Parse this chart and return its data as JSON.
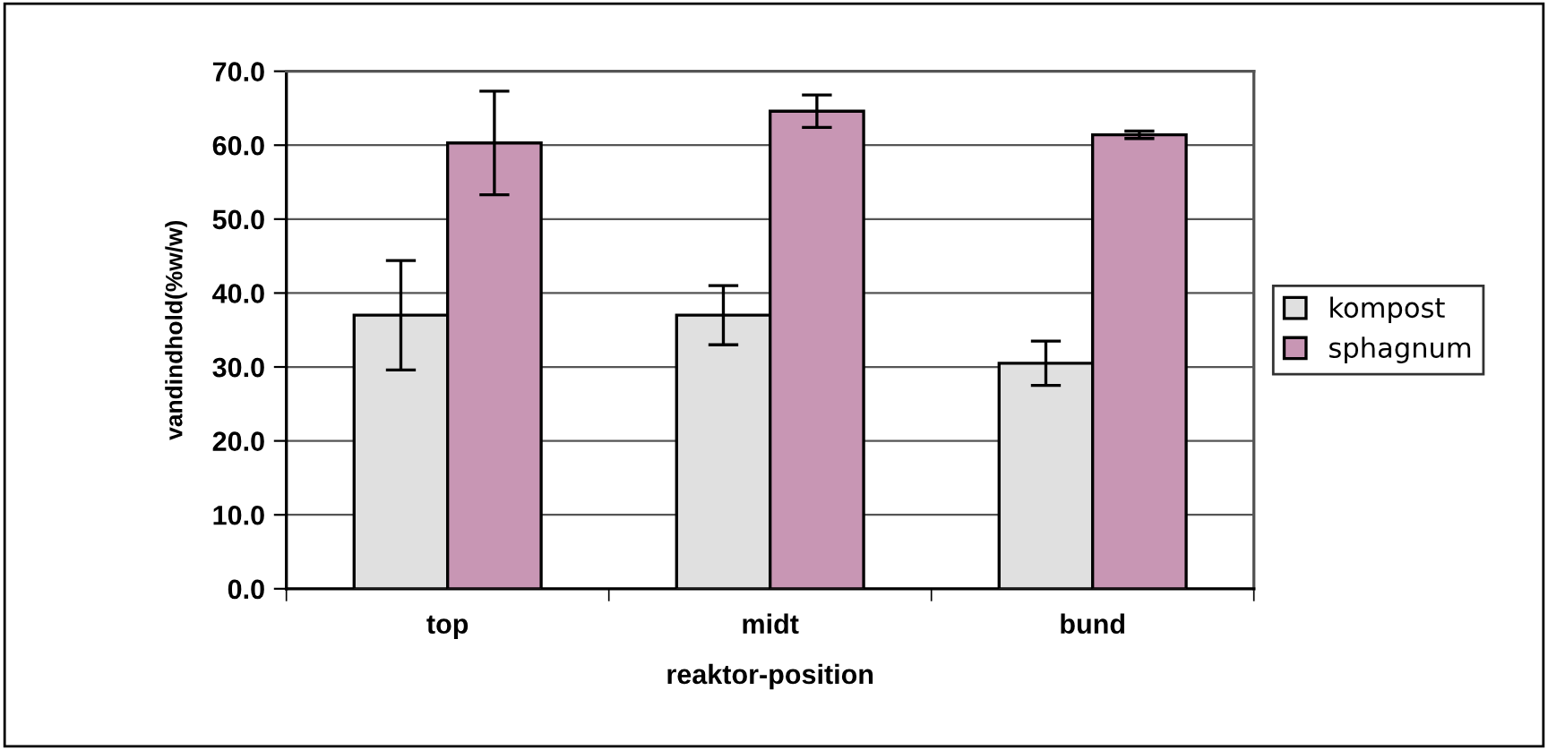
{
  "chart_data": {
    "type": "bar",
    "xlabel": "reaktor-position",
    "ylabel": "vandindhold(%w/w)",
    "categories": [
      "top",
      "midt",
      "bund"
    ],
    "series": [
      {
        "name": "kompost",
        "color": "#e0e0e0",
        "values": [
          37.0,
          37.0,
          30.5
        ],
        "errors": [
          7.4,
          4.0,
          3.0
        ]
      },
      {
        "name": "sphagnum",
        "color": "#c896b4",
        "values": [
          60.3,
          64.6,
          61.4
        ],
        "errors": [
          7.0,
          2.2,
          0.5
        ]
      }
    ],
    "ylim": [
      0,
      70
    ],
    "yticks": [
      {
        "value": 0,
        "label": "0.0"
      },
      {
        "value": 10,
        "label": "10.0"
      },
      {
        "value": 20,
        "label": "20.0"
      },
      {
        "value": 30,
        "label": "30.0"
      },
      {
        "value": 40,
        "label": "40.0"
      },
      {
        "value": 50,
        "label": "50.0"
      },
      {
        "value": 60,
        "label": "60.0"
      },
      {
        "value": 70,
        "label": "70.0"
      }
    ],
    "grid": "y",
    "legend": "right"
  }
}
